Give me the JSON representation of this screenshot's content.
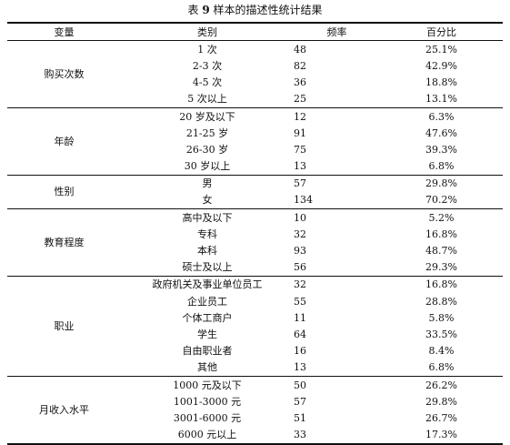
{
  "caption": {
    "prefix": "表",
    "number": "9",
    "title": "样本的描述性统计结果"
  },
  "headers": {
    "variable": "变量",
    "category": "类别",
    "frequency": "频率",
    "percent": "百分比"
  },
  "groups": [
    {
      "variable": "购买次数",
      "rows": [
        {
          "category": "1 次",
          "frequency": "48",
          "percent": "25.1%"
        },
        {
          "category": "2-3 次",
          "frequency": "82",
          "percent": "42.9%"
        },
        {
          "category": "4-5 次",
          "frequency": "36",
          "percent": "18.8%"
        },
        {
          "category": "5 次以上",
          "frequency": "25",
          "percent": "13.1%"
        }
      ]
    },
    {
      "variable": "年龄",
      "rows": [
        {
          "category": "20 岁及以下",
          "frequency": "12",
          "percent": "6.3%"
        },
        {
          "category": "21-25 岁",
          "frequency": "91",
          "percent": "47.6%"
        },
        {
          "category": "26-30 岁",
          "frequency": "75",
          "percent": "39.3%"
        },
        {
          "category": "30 岁以上",
          "frequency": "13",
          "percent": "6.8%"
        }
      ]
    },
    {
      "variable": "性别",
      "rows": [
        {
          "category": "男",
          "frequency": "57",
          "percent": "29.8%"
        },
        {
          "category": "女",
          "frequency": "134",
          "percent": "70.2%"
        }
      ]
    },
    {
      "variable": "教育程度",
      "rows": [
        {
          "category": "高中及以下",
          "frequency": "10",
          "percent": "5.2%"
        },
        {
          "category": "专科",
          "frequency": "32",
          "percent": "16.8%"
        },
        {
          "category": "本科",
          "frequency": "93",
          "percent": "48.7%"
        },
        {
          "category": "硕士及以上",
          "frequency": "56",
          "percent": "29.3%"
        }
      ]
    },
    {
      "variable": "职业",
      "rows": [
        {
          "category": "政府机关及事业单位员工",
          "frequency": "32",
          "percent": "16.8%"
        },
        {
          "category": "企业员工",
          "frequency": "55",
          "percent": "28.8%"
        },
        {
          "category": "个体工商户",
          "frequency": "11",
          "percent": "5.8%"
        },
        {
          "category": "学生",
          "frequency": "64",
          "percent": "33.5%"
        },
        {
          "category": "自由职业者",
          "frequency": "16",
          "percent": "8.4%"
        },
        {
          "category": "其他",
          "frequency": "13",
          "percent": "6.8%"
        }
      ]
    },
    {
      "variable": "月收入水平",
      "rows": [
        {
          "category": "1000 元及以下",
          "frequency": "50",
          "percent": "26.2%"
        },
        {
          "category": "1001-3000 元",
          "frequency": "57",
          "percent": "29.8%"
        },
        {
          "category": "3001-6000 元",
          "frequency": "51",
          "percent": "26.7%"
        },
        {
          "category": "6000 元以上",
          "frequency": "33",
          "percent": "17.3%"
        }
      ]
    }
  ]
}
